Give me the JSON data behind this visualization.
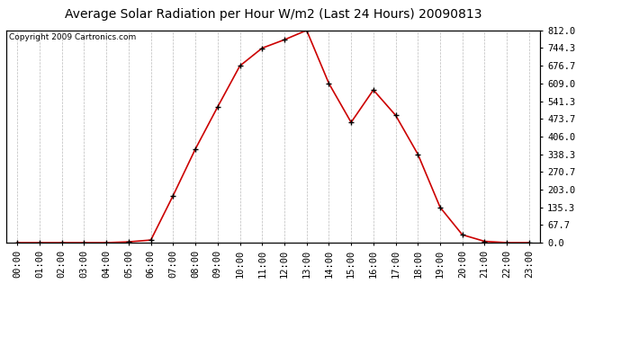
{
  "title": "Average Solar Radiation per Hour W/m2 (Last 24 Hours) 20090813",
  "copyright": "Copyright 2009 Cartronics.com",
  "x_labels": [
    "00:00",
    "01:00",
    "02:00",
    "03:00",
    "04:00",
    "05:00",
    "06:00",
    "07:00",
    "08:00",
    "09:00",
    "10:00",
    "11:00",
    "12:00",
    "13:00",
    "14:00",
    "15:00",
    "16:00",
    "17:00",
    "18:00",
    "19:00",
    "20:00",
    "21:00",
    "22:00",
    "23:00"
  ],
  "y_values": [
    0.0,
    0.0,
    0.0,
    0.0,
    0.0,
    3.0,
    10.0,
    180.0,
    358.0,
    519.0,
    676.0,
    744.0,
    776.0,
    812.0,
    609.0,
    460.0,
    584.0,
    487.0,
    338.0,
    135.0,
    30.0,
    5.0,
    0.0,
    0.0
  ],
  "line_color": "#cc0000",
  "marker_color": "#000000",
  "marker_style": "+",
  "bg_color": "#ffffff",
  "plot_bg_color": "#ffffff",
  "grid_color": "#bbbbbb",
  "title_fontsize": 10,
  "copyright_fontsize": 6.5,
  "tick_fontsize": 7.5,
  "ytick_values": [
    0.0,
    67.7,
    135.3,
    203.0,
    270.7,
    338.3,
    406.0,
    473.7,
    541.3,
    609.0,
    676.7,
    744.3,
    812.0
  ],
  "ylim": [
    0.0,
    812.0
  ],
  "right_axis": true
}
